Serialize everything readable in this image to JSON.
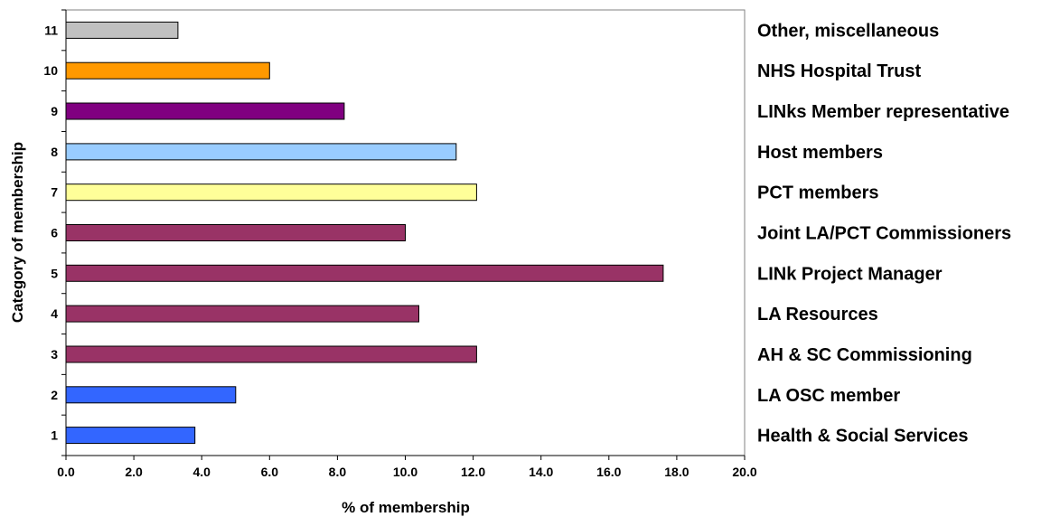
{
  "chart_data": {
    "type": "bar",
    "orientation": "horizontal",
    "title": "",
    "xlabel": "% of membership",
    "ylabel": "Category of membership",
    "xlim": [
      0,
      20
    ],
    "x_ticks": [
      "0.0",
      "2.0",
      "4.0",
      "6.0",
      "8.0",
      "10.0",
      "12.0",
      "14.0",
      "16.0",
      "18.0",
      "20.0"
    ],
    "grid": false,
    "legend": "none",
    "categories": [
      "1",
      "2",
      "3",
      "4",
      "5",
      "6",
      "7",
      "8",
      "9",
      "10",
      "11"
    ],
    "category_labels": [
      "Health & Social Services",
      "LA OSC member",
      "AH & SC Commissioning",
      "LA Resources",
      "LINk Project Manager",
      "Joint LA/PCT Commissioners",
      "PCT members",
      "Host members",
      "LINks Member representative",
      "NHS Hospital Trust",
      "Other, miscellaneous"
    ],
    "values": [
      3.8,
      5.0,
      12.1,
      10.4,
      17.6,
      10.0,
      12.1,
      11.5,
      8.2,
      6.0,
      3.3
    ],
    "colors": [
      "#3366ff",
      "#3366ff",
      "#993366",
      "#993366",
      "#993366",
      "#993366",
      "#ffff99",
      "#99ccff",
      "#800080",
      "#ff9900",
      "#c0c0c0"
    ]
  }
}
